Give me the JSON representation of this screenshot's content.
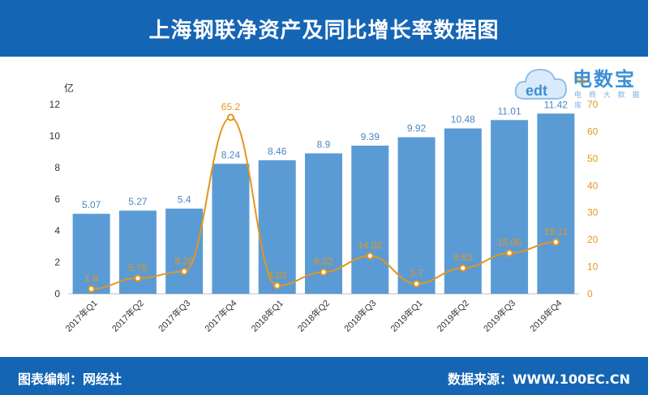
{
  "header": {
    "title": "上海钢联净资产及同比增长率数据图"
  },
  "footer": {
    "left_text": "图表编制：网经社",
    "right_text": "数据来源：WWW.100EC.CN"
  },
  "logo": {
    "name": "电数宝",
    "subtitle": "电 商 大 数 据 库",
    "mark": "edt"
  },
  "colors": {
    "bar": "#5b9bd5",
    "line": "#e3961b",
    "header_bg": "#1565b5",
    "bar_label": "#4a86c5"
  },
  "chart_data": {
    "type": "bar",
    "categories": [
      "2017年Q1",
      "2017年Q2",
      "2017年Q3",
      "2017年Q4",
      "2018年Q1",
      "2018年Q2",
      "2018年Q3",
      "2019年Q1",
      "2019年Q2",
      "2019年Q3",
      "2019年Q4"
    ],
    "series": [
      {
        "type": "bar",
        "axis": "left",
        "values": [
          5.07,
          5.27,
          5.4,
          8.24,
          8.46,
          8.9,
          9.39,
          9.92,
          10.48,
          11.01,
          11.42
        ]
      },
      {
        "type": "line",
        "axis": "right",
        "values": [
          1.8,
          5.75,
          8.26,
          65.2,
          3.03,
          8.02,
          14.02,
          3.7,
          9.53,
          15.06,
          19.11
        ]
      }
    ],
    "y_left": {
      "unit": "亿",
      "range": [
        0,
        12
      ],
      "ticks": [
        0,
        2,
        4,
        6,
        8,
        10,
        12
      ]
    },
    "y_right": {
      "unit": "%",
      "range": [
        0,
        70
      ],
      "ticks": [
        0,
        10,
        20,
        30,
        40,
        50,
        60,
        70
      ]
    },
    "bar_labels": [
      "5.07",
      "5.27",
      "5.4",
      "8.24",
      "8.46",
      "8.9",
      "9.39",
      "9.92",
      "10.48",
      "11.01",
      "11.42"
    ],
    "line_labels": [
      "1.8",
      "5.75",
      "8.26",
      "65.2",
      "3.03",
      "8.02",
      "14.02",
      "3.7",
      "9.53",
      "15.06",
      "19.11"
    ],
    "grid": false
  }
}
